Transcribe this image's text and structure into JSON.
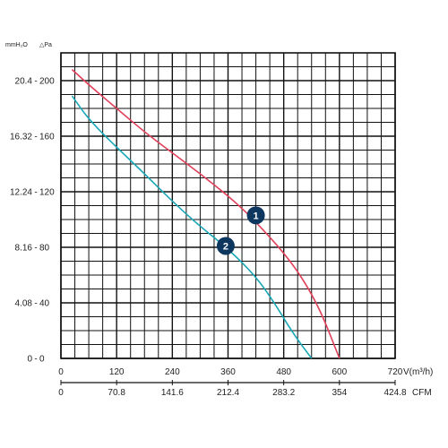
{
  "chart_data": {
    "type": "line",
    "header": {
      "mmh2o": "mmH₂O",
      "pa": "△Pa"
    },
    "x_axis": {
      "unit": "V(m³/h)",
      "ticks": [
        "0",
        "120",
        "240",
        "360",
        "480",
        "600",
        "720"
      ],
      "range": [
        0,
        720
      ]
    },
    "x_axis_cfm": {
      "unit": "CFM",
      "ticks": [
        "0",
        "70.8",
        "141.6",
        "212.4",
        "283.2",
        "354",
        "424.8"
      ]
    },
    "y_axis_pa": {
      "ticks": [
        "0",
        "40",
        "80",
        "120",
        "160",
        "200"
      ],
      "range": [
        0,
        200
      ]
    },
    "y_axis_mmh2o": {
      "ticks": [
        "0",
        "4.08",
        "8.16",
        "12.24",
        "16.32",
        "20.4"
      ]
    },
    "grid": true,
    "series": [
      {
        "marker": "1",
        "color": "#e0405a",
        "marker_at": {
          "x": 420,
          "y": 103
        },
        "points": [
          {
            "x": 24,
            "y": 208
          },
          {
            "x": 60,
            "y": 197
          },
          {
            "x": 120,
            "y": 180
          },
          {
            "x": 180,
            "y": 163
          },
          {
            "x": 240,
            "y": 148
          },
          {
            "x": 300,
            "y": 133
          },
          {
            "x": 360,
            "y": 117
          },
          {
            "x": 400,
            "y": 105
          },
          {
            "x": 440,
            "y": 91
          },
          {
            "x": 480,
            "y": 76
          },
          {
            "x": 520,
            "y": 58
          },
          {
            "x": 560,
            "y": 34
          },
          {
            "x": 600,
            "y": 0
          }
        ]
      },
      {
        "marker": "2",
        "color": "#19a7b5",
        "marker_at": {
          "x": 355,
          "y": 81
        },
        "points": [
          {
            "x": 24,
            "y": 189
          },
          {
            "x": 60,
            "y": 172
          },
          {
            "x": 120,
            "y": 152
          },
          {
            "x": 180,
            "y": 133
          },
          {
            "x": 240,
            "y": 113
          },
          {
            "x": 300,
            "y": 95
          },
          {
            "x": 360,
            "y": 79
          },
          {
            "x": 420,
            "y": 59
          },
          {
            "x": 460,
            "y": 40
          },
          {
            "x": 500,
            "y": 18
          },
          {
            "x": 540,
            "y": 0
          }
        ]
      }
    ]
  }
}
